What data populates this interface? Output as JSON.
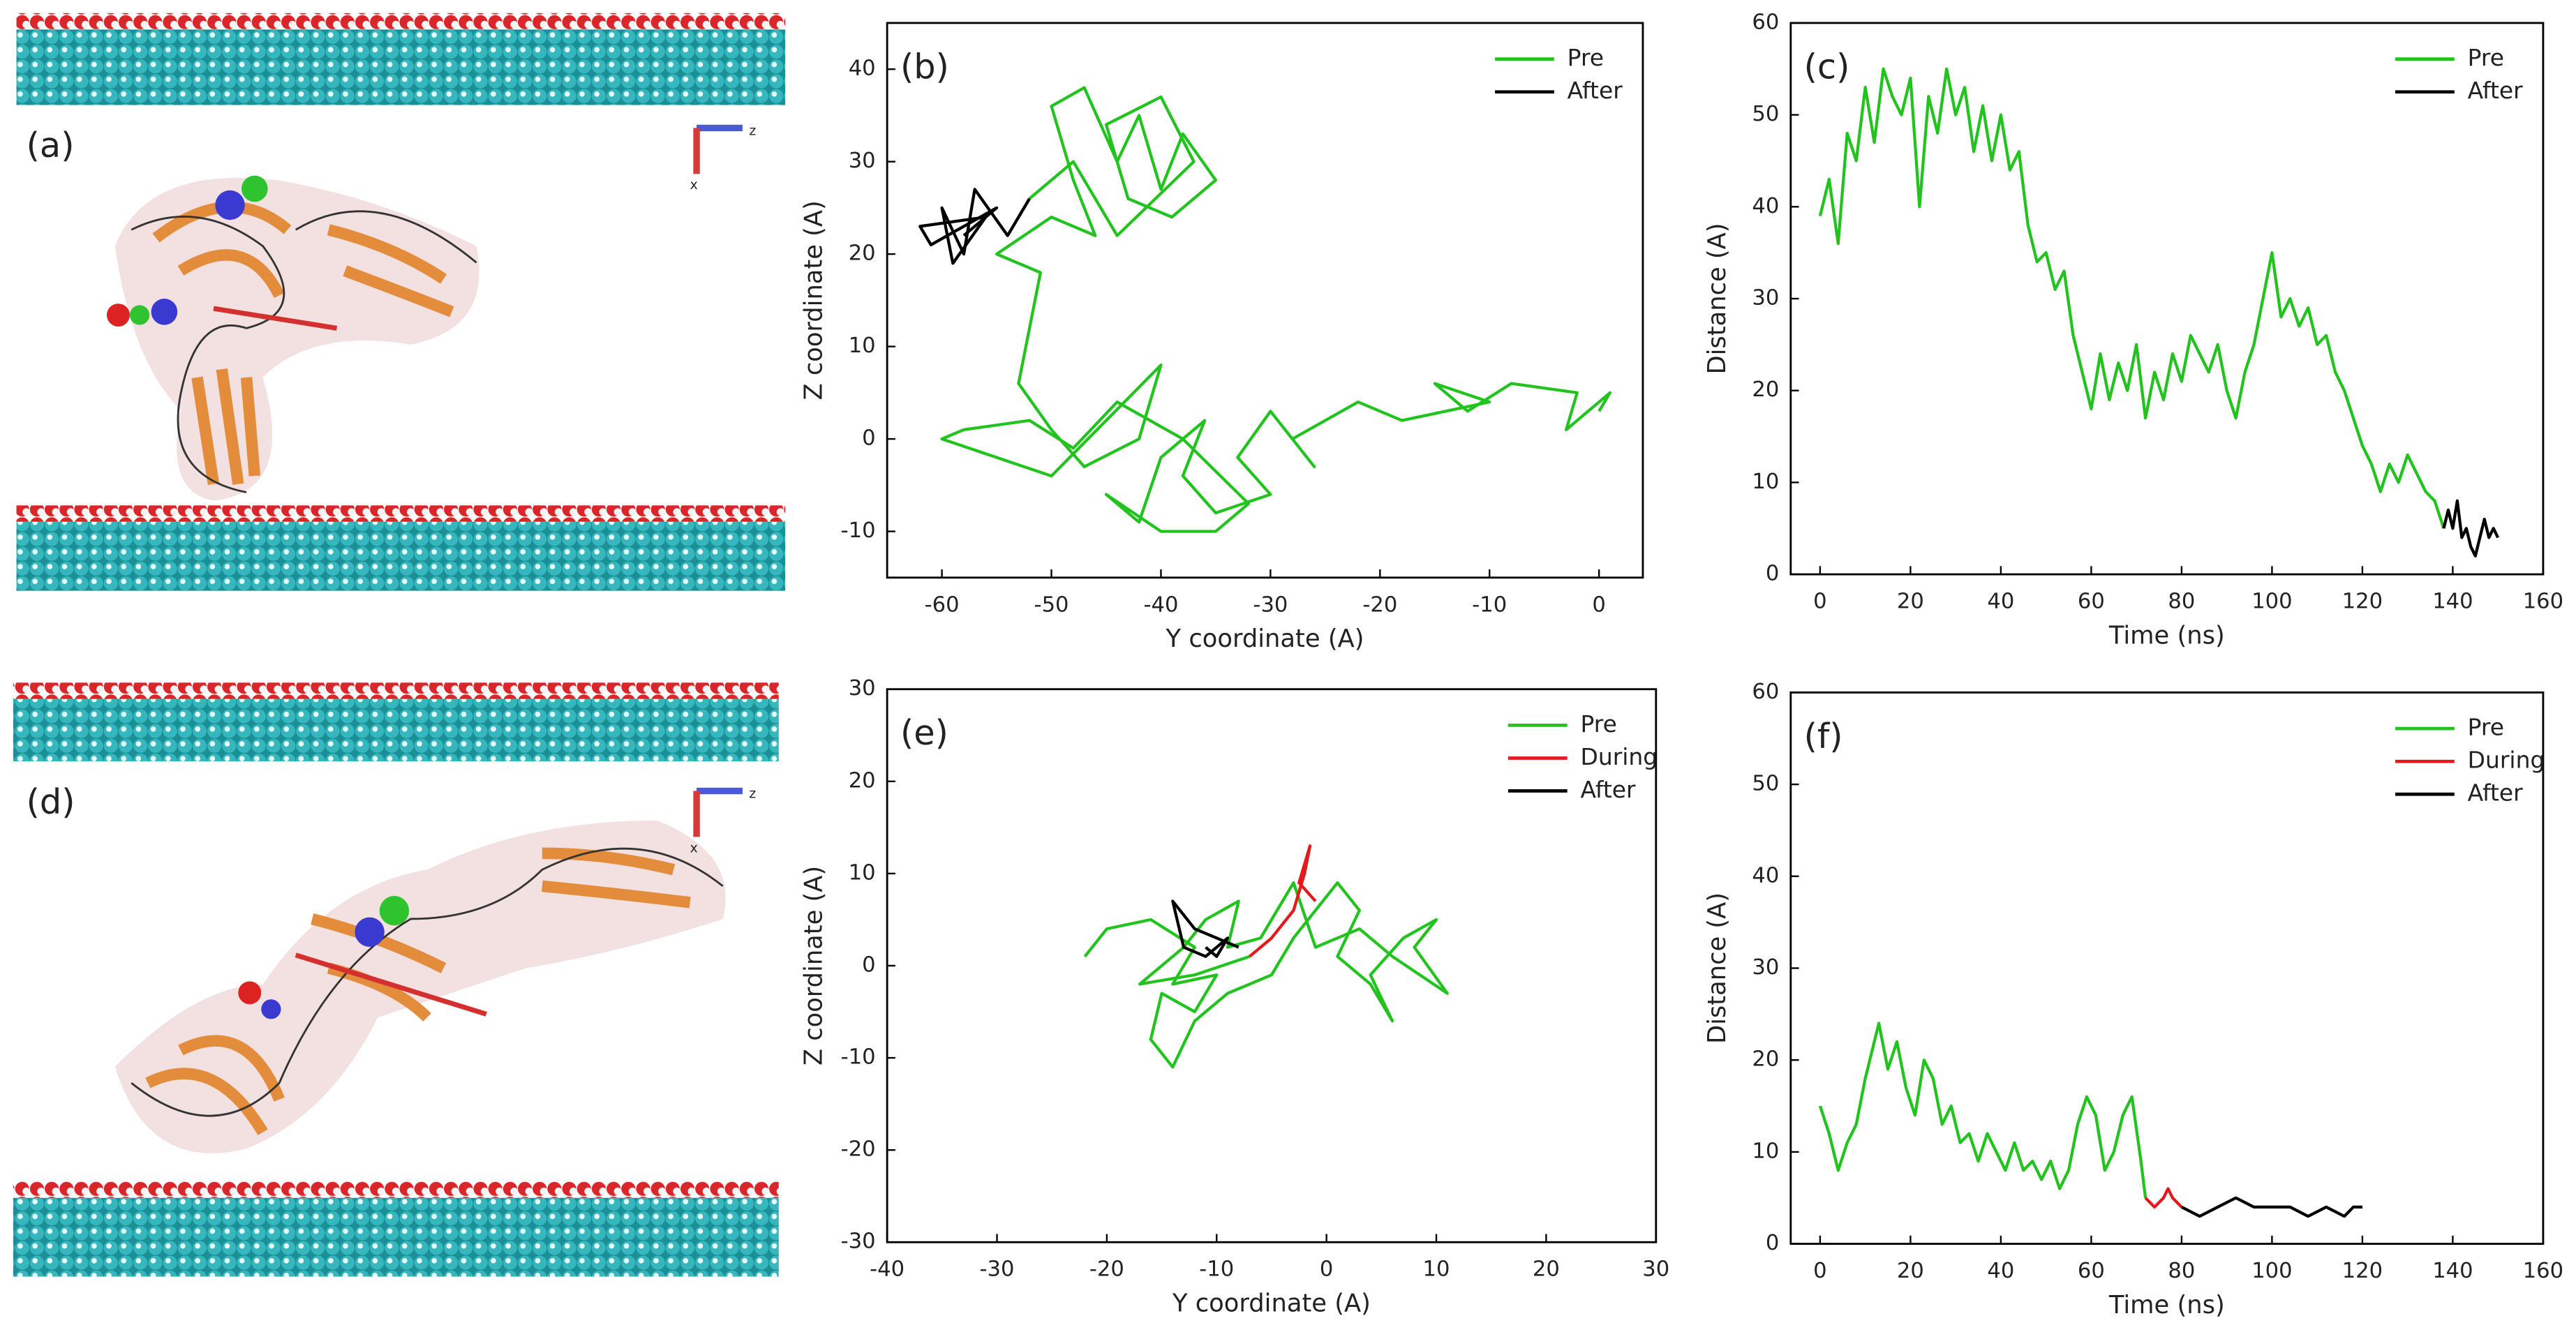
{
  "images": [
    {
      "label": "(a)",
      "axis_labels": [
        "z",
        "x"
      ]
    },
    {
      "label": "(d)",
      "axis_labels": [
        "z",
        "x"
      ]
    }
  ],
  "chart_data": [
    {
      "type": "line",
      "label": "(b)",
      "xlabel": "Y coordinate (A)",
      "ylabel": "Z coordinate (A)",
      "xlim": [
        -65,
        4
      ],
      "ylim": [
        -15,
        45
      ],
      "xticks": [
        -60,
        -50,
        -40,
        -30,
        -20,
        -10,
        0
      ],
      "yticks": [
        -10,
        0,
        10,
        20,
        30,
        40
      ],
      "legend": "upper right",
      "series": [
        {
          "name": "Pre",
          "color": "#22c31f",
          "x": [
            0,
            1,
            -3,
            -2,
            -8,
            -12,
            -15,
            -10,
            -18,
            -22,
            -25,
            -28,
            -26,
            -30,
            -33,
            -30,
            -35,
            -38,
            -36,
            -40,
            -42,
            -45,
            -40,
            -35,
            -32,
            -38,
            -44,
            -48,
            -52,
            -58,
            -60,
            -55,
            -50,
            -45,
            -40,
            -42,
            -47,
            -50,
            -53,
            -52,
            -51,
            -55,
            -50,
            -46,
            -48,
            -50,
            -47,
            -44,
            -42,
            -40,
            -38,
            -35,
            -39,
            -43,
            -45,
            -40,
            -37,
            -44,
            -48,
            -52
          ],
          "values": [
            3,
            5,
            1,
            5,
            6,
            3,
            6,
            4,
            2,
            4,
            2,
            0,
            -3,
            3,
            -2,
            -6,
            -8,
            -4,
            2,
            -2,
            -9,
            -6,
            -10,
            -10,
            -7,
            0,
            4,
            -1,
            2,
            1,
            0,
            -2,
            -4,
            2,
            8,
            0,
            -3,
            1,
            6,
            12,
            18,
            20,
            24,
            22,
            28,
            36,
            38,
            30,
            35,
            27,
            33,
            28,
            24,
            26,
            34,
            37,
            30,
            22,
            30,
            26
          ]
        },
        {
          "name": "After",
          "color": "#000000",
          "x": [
            -52,
            -54,
            -57,
            -58,
            -60,
            -59,
            -56,
            -62,
            -61,
            -55,
            -58
          ],
          "values": [
            26,
            22,
            27,
            20,
            25,
            19,
            24,
            23,
            21,
            25,
            22
          ]
        }
      ]
    },
    {
      "type": "line",
      "label": "(c)",
      "xlabel": "Time (ns)",
      "ylabel": "Distance (A)",
      "xlim": [
        -6.5,
        160
      ],
      "ylim": [
        0,
        60
      ],
      "xticks": [
        0,
        20,
        40,
        60,
        80,
        100,
        120,
        140,
        160
      ],
      "yticks": [
        0,
        10,
        20,
        30,
        40,
        50,
        60
      ],
      "legend": "upper right",
      "series": [
        {
          "name": "Pre",
          "color": "#22c31f",
          "x": [
            0,
            2,
            4,
            6,
            8,
            10,
            12,
            14,
            16,
            18,
            20,
            22,
            24,
            26,
            28,
            30,
            32,
            34,
            36,
            38,
            40,
            42,
            44,
            46,
            48,
            50,
            52,
            54,
            56,
            58,
            60,
            62,
            64,
            66,
            68,
            70,
            72,
            74,
            76,
            78,
            80,
            82,
            84,
            86,
            88,
            90,
            92,
            94,
            96,
            98,
            100,
            102,
            104,
            106,
            108,
            110,
            112,
            114,
            116,
            118,
            120,
            122,
            124,
            126,
            128,
            130,
            132,
            134,
            136,
            138
          ],
          "values": [
            39,
            43,
            36,
            48,
            45,
            53,
            47,
            55,
            52,
            50,
            54,
            40,
            52,
            48,
            55,
            50,
            53,
            46,
            51,
            45,
            50,
            44,
            46,
            38,
            34,
            35,
            31,
            33,
            26,
            22,
            18,
            24,
            19,
            23,
            20,
            25,
            17,
            22,
            19,
            24,
            21,
            26,
            24,
            22,
            25,
            20,
            17,
            22,
            25,
            30,
            35,
            28,
            30,
            27,
            29,
            25,
            26,
            22,
            20,
            17,
            14,
            12,
            9,
            12,
            10,
            13,
            11,
            9,
            8,
            5
          ]
        },
        {
          "name": "After",
          "color": "#000000",
          "x": [
            138,
            139,
            140,
            141,
            142,
            143,
            144,
            145,
            146,
            147,
            148,
            149,
            150
          ],
          "values": [
            5,
            7,
            5,
            8,
            4,
            5,
            3,
            2,
            4,
            6,
            4,
            5,
            4
          ]
        }
      ]
    },
    {
      "type": "line",
      "label": "(e)",
      "xlabel": "Y coordinate (A)",
      "ylabel": "Z coordinate (A)",
      "xlim": [
        -40,
        30
      ],
      "ylim": [
        -30,
        30
      ],
      "xticks": [
        -40,
        -30,
        -20,
        -10,
        0,
        10,
        20,
        30
      ],
      "yticks": [
        -30,
        -20,
        -10,
        0,
        10,
        20,
        30
      ],
      "legend": "upper right",
      "series": [
        {
          "name": "Pre",
          "color": "#22c31f",
          "x": [
            -22,
            -20,
            -16,
            -12,
            -14,
            -10,
            -12,
            -15,
            -16,
            -14,
            -12,
            -9,
            -5,
            -3,
            -1,
            1,
            3,
            1,
            4,
            6,
            4,
            7,
            10,
            8,
            11,
            6,
            3,
            -1,
            -3,
            -6,
            -9,
            -8,
            -11,
            -13,
            -17,
            -12,
            -7
          ],
          "values": [
            1,
            4,
            5,
            2,
            -2,
            -1,
            -5,
            -3,
            -8,
            -11,
            -6,
            -3,
            -1,
            3,
            6,
            9,
            6,
            1,
            -2,
            -6,
            -1,
            3,
            5,
            2,
            -3,
            1,
            4,
            2,
            9,
            3,
            2,
            7,
            5,
            2,
            -2,
            -1,
            1
          ]
        },
        {
          "name": "During",
          "color": "#e3191c",
          "x": [
            -7,
            -5,
            -3,
            -2,
            -1.5,
            -2.5,
            -1
          ],
          "values": [
            1,
            3,
            6,
            10,
            13,
            9,
            7
          ]
        },
        {
          "name": "After",
          "color": "#000000",
          "x": [
            -8,
            -10,
            -12,
            -14,
            -13,
            -11,
            -9,
            -10,
            -11
          ],
          "values": [
            2,
            3,
            4,
            7,
            2,
            1,
            3,
            1,
            2
          ]
        }
      ]
    },
    {
      "type": "line",
      "label": "(f)",
      "xlabel": "Time (ns)",
      "ylabel": "Distance (A)",
      "xlim": [
        -6.5,
        160
      ],
      "ylim": [
        0,
        60
      ],
      "xticks": [
        0,
        20,
        40,
        60,
        80,
        100,
        120,
        140,
        160
      ],
      "yticks": [
        0,
        10,
        20,
        30,
        40,
        50,
        60
      ],
      "legend": "upper right",
      "series": [
        {
          "name": "Pre",
          "color": "#22c31f",
          "x": [
            0,
            2,
            4,
            6,
            8,
            10,
            12,
            13,
            15,
            17,
            19,
            21,
            23,
            25,
            27,
            29,
            31,
            33,
            35,
            37,
            39,
            41,
            43,
            45,
            47,
            49,
            51,
            53,
            55,
            57,
            59,
            61,
            63,
            65,
            67,
            69,
            71,
            72
          ],
          "values": [
            15,
            12,
            8,
            11,
            13,
            18,
            22,
            24,
            19,
            22,
            17,
            14,
            20,
            18,
            13,
            15,
            11,
            12,
            9,
            12,
            10,
            8,
            11,
            8,
            9,
            7,
            9,
            6,
            8,
            13,
            16,
            14,
            8,
            10,
            14,
            16,
            9,
            5
          ]
        },
        {
          "name": "During",
          "color": "#e3191c",
          "x": [
            72,
            74,
            76,
            77,
            78,
            80
          ],
          "values": [
            5,
            4,
            5,
            6,
            5,
            4
          ]
        },
        {
          "name": "After",
          "color": "#000000",
          "x": [
            80,
            84,
            88,
            92,
            96,
            100,
            104,
            108,
            112,
            116,
            118,
            120
          ],
          "values": [
            4,
            3,
            4,
            5,
            4,
            4,
            4,
            3,
            4,
            3,
            4,
            4
          ]
        }
      ]
    }
  ]
}
